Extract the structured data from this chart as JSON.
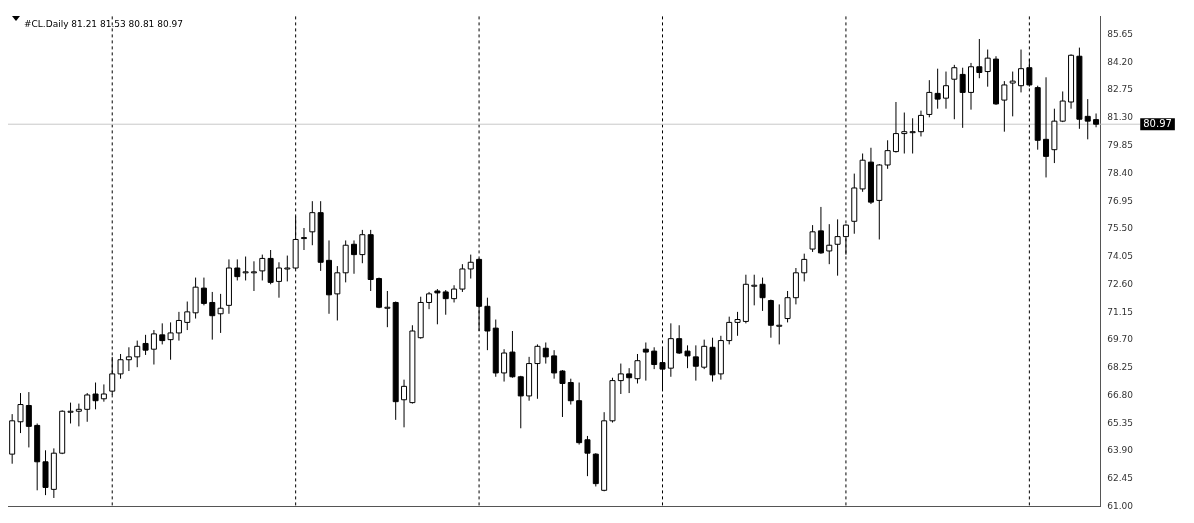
{
  "chart_data": {
    "type": "candlestick",
    "title": "#CL.Daily 81.21 81.53 80.81 80.97",
    "categories": [
      null,
      null,
      null,
      null,
      null,
      null,
      null,
      null,
      null,
      null,
      null,
      null,
      null,
      null,
      null,
      null,
      null,
      null,
      null,
      null,
      null,
      null,
      null,
      null,
      null,
      null,
      null,
      null,
      null,
      null,
      null,
      null,
      null,
      null,
      null,
      null,
      null,
      null,
      null,
      null,
      null,
      null,
      null,
      null,
      null,
      null,
      null,
      null,
      null,
      null,
      null,
      null,
      null,
      null,
      null,
      null,
      null,
      null,
      null,
      null,
      null,
      null,
      null,
      null,
      null,
      null,
      null,
      null,
      null,
      null,
      null,
      null,
      null,
      null,
      null,
      null,
      null,
      null,
      null,
      null,
      null,
      null,
      null,
      null,
      null,
      null,
      null,
      null,
      null,
      null,
      null,
      null,
      null,
      null,
      null,
      null,
      null,
      null,
      null,
      null,
      null,
      null,
      null,
      null,
      null,
      null,
      null,
      null,
      null,
      null,
      null,
      null,
      null,
      null,
      null,
      null,
      null,
      null,
      null,
      null,
      null,
      null,
      null,
      null,
      null,
      null,
      null,
      null,
      null,
      null,
      null
    ],
    "ohlc": [
      [
        63.74,
        65.83,
        63.24,
        65.48
      ],
      [
        65.43,
        66.93,
        64.84,
        66.33
      ],
      [
        66.28,
        66.98,
        64.09,
        65.19
      ],
      [
        65.24,
        65.34,
        61.85,
        63.34
      ],
      [
        63.34,
        63.94,
        61.6,
        62.0
      ],
      [
        61.9,
        64.04,
        61.45,
        63.79
      ],
      [
        63.79,
        66.03,
        63.74,
        65.98
      ],
      [
        65.98,
        66.43,
        65.34,
        65.98
      ],
      [
        65.98,
        66.38,
        65.19,
        66.08
      ],
      [
        66.08,
        66.93,
        65.43,
        66.83
      ],
      [
        66.88,
        67.48,
        66.08,
        66.53
      ],
      [
        66.63,
        67.38,
        66.48,
        66.88
      ],
      [
        67.03,
        68.82,
        66.83,
        67.93
      ],
      [
        67.93,
        68.97,
        67.68,
        68.67
      ],
      [
        68.67,
        69.32,
        68.08,
        68.82
      ],
      [
        68.82,
        69.67,
        68.28,
        69.37
      ],
      [
        69.52,
        69.97,
        68.92,
        69.17
      ],
      [
        69.22,
        70.22,
        68.42,
        70.02
      ],
      [
        69.97,
        70.57,
        69.47,
        69.67
      ],
      [
        69.72,
        70.62,
        68.67,
        70.07
      ],
      [
        70.07,
        71.17,
        69.67,
        70.72
      ],
      [
        70.62,
        71.71,
        70.22,
        71.17
      ],
      [
        71.12,
        72.96,
        70.82,
        72.46
      ],
      [
        72.41,
        72.96,
        71.51,
        71.61
      ],
      [
        71.66,
        72.21,
        69.72,
        70.97
      ],
      [
        71.07,
        72.11,
        70.07,
        71.36
      ],
      [
        71.51,
        73.91,
        71.07,
        73.46
      ],
      [
        73.46,
        73.91,
        72.81,
        73.01
      ],
      [
        73.26,
        74.06,
        72.81,
        73.26
      ],
      [
        73.26,
        73.81,
        72.26,
        73.26
      ],
      [
        73.31,
        74.16,
        72.81,
        73.96
      ],
      [
        73.96,
        74.4,
        72.61,
        72.71
      ],
      [
        72.76,
        73.76,
        71.91,
        73.46
      ],
      [
        73.46,
        74.11,
        72.76,
        73.46
      ],
      [
        73.46,
        76.15,
        73.41,
        74.95
      ],
      [
        75.05,
        75.55,
        74.4,
        75.05
      ],
      [
        75.35,
        76.95,
        74.65,
        76.35
      ],
      [
        76.35,
        76.95,
        73.31,
        73.76
      ],
      [
        73.86,
        74.9,
        71.07,
        72.06
      ],
      [
        72.11,
        73.56,
        70.72,
        73.21
      ],
      [
        73.21,
        74.9,
        72.71,
        74.65
      ],
      [
        74.7,
        74.9,
        73.16,
        74.16
      ],
      [
        74.16,
        75.45,
        73.71,
        75.2
      ],
      [
        75.2,
        75.45,
        72.26,
        72.86
      ],
      [
        72.91,
        72.96,
        71.36,
        71.41
      ],
      [
        71.41,
        72.26,
        70.37,
        71.41
      ],
      [
        71.66,
        71.71,
        65.53,
        66.48
      ],
      [
        66.58,
        67.63,
        65.14,
        67.28
      ],
      [
        66.43,
        70.47,
        66.38,
        70.17
      ],
      [
        69.82,
        71.96,
        69.77,
        71.66
      ],
      [
        71.66,
        72.21,
        71.31,
        72.11
      ],
      [
        72.26,
        72.36,
        70.52,
        72.16
      ],
      [
        72.21,
        72.31,
        71.02,
        71.86
      ],
      [
        71.86,
        72.56,
        71.66,
        72.36
      ],
      [
        72.36,
        73.66,
        72.21,
        73.41
      ],
      [
        73.41,
        74.16,
        72.91,
        73.76
      ],
      [
        73.91,
        73.96,
        70.17,
        71.46
      ],
      [
        71.46,
        71.91,
        69.17,
        70.17
      ],
      [
        70.32,
        70.77,
        67.78,
        67.98
      ],
      [
        67.98,
        69.22,
        67.53,
        69.02
      ],
      [
        69.07,
        70.17,
        67.73,
        67.78
      ],
      [
        67.78,
        67.83,
        65.09,
        66.78
      ],
      [
        66.78,
        68.82,
        66.53,
        68.47
      ],
      [
        68.47,
        69.47,
        66.63,
        69.37
      ],
      [
        69.27,
        69.57,
        68.47,
        68.82
      ],
      [
        68.87,
        69.17,
        67.68,
        67.98
      ],
      [
        68.08,
        68.13,
        65.68,
        67.43
      ],
      [
        67.48,
        67.68,
        66.33,
        66.53
      ],
      [
        66.53,
        67.48,
        64.24,
        64.34
      ],
      [
        64.49,
        64.69,
        62.59,
        63.79
      ],
      [
        63.74,
        63.79,
        62.05,
        62.2
      ],
      [
        61.85,
        65.93,
        61.8,
        65.48
      ],
      [
        65.48,
        67.73,
        65.39,
        67.58
      ],
      [
        67.58,
        68.47,
        66.88,
        67.93
      ],
      [
        67.93,
        68.23,
        66.93,
        67.73
      ],
      [
        67.68,
        68.97,
        67.43,
        68.62
      ],
      [
        69.22,
        69.57,
        67.58,
        69.07
      ],
      [
        69.12,
        69.32,
        68.18,
        68.42
      ],
      [
        68.52,
        69.22,
        67.03,
        68.18
      ],
      [
        68.23,
        70.57,
        67.78,
        69.77
      ],
      [
        69.77,
        70.47,
        68.97,
        69.02
      ],
      [
        69.12,
        69.42,
        68.23,
        68.87
      ],
      [
        68.82,
        69.42,
        67.58,
        68.33
      ],
      [
        68.28,
        69.72,
        68.18,
        69.37
      ],
      [
        69.32,
        69.82,
        67.53,
        67.88
      ],
      [
        67.93,
        69.92,
        67.63,
        69.67
      ],
      [
        69.67,
        70.92,
        69.47,
        70.62
      ],
      [
        70.62,
        71.17,
        69.92,
        70.77
      ],
      [
        70.67,
        73.11,
        70.57,
        72.61
      ],
      [
        72.56,
        73.11,
        71.51,
        72.56
      ],
      [
        72.61,
        72.96,
        71.22,
        71.91
      ],
      [
        71.76,
        71.81,
        69.82,
        70.47
      ],
      [
        70.47,
        71.56,
        69.47,
        70.47
      ],
      [
        70.82,
        72.26,
        70.62,
        71.91
      ],
      [
        71.91,
        73.46,
        71.56,
        73.21
      ],
      [
        73.21,
        74.21,
        72.76,
        73.91
      ],
      [
        74.45,
        75.7,
        74.3,
        75.35
      ],
      [
        75.4,
        76.65,
        74.2,
        74.25
      ],
      [
        74.35,
        75.75,
        73.66,
        74.65
      ],
      [
        74.7,
        76.0,
        73.06,
        75.1
      ],
      [
        75.1,
        75.75,
        74.16,
        75.7
      ],
      [
        75.9,
        78.39,
        75.25,
        77.64
      ],
      [
        77.59,
        79.44,
        77.44,
        79.09
      ],
      [
        78.99,
        79.74,
        76.8,
        76.9
      ],
      [
        76.99,
        78.89,
        74.95,
        78.84
      ],
      [
        78.84,
        80.13,
        78.64,
        79.59
      ],
      [
        79.54,
        82.13,
        79.49,
        80.48
      ],
      [
        80.48,
        81.58,
        79.44,
        80.58
      ],
      [
        80.58,
        81.28,
        79.44,
        80.58
      ],
      [
        80.58,
        81.68,
        80.33,
        81.43
      ],
      [
        81.48,
        83.27,
        81.33,
        82.63
      ],
      [
        82.58,
        83.87,
        81.78,
        82.28
      ],
      [
        82.33,
        83.72,
        81.78,
        82.98
      ],
      [
        83.32,
        84.07,
        81.23,
        83.92
      ],
      [
        83.57,
        83.92,
        80.78,
        82.63
      ],
      [
        82.63,
        84.17,
        81.73,
        83.97
      ],
      [
        83.97,
        85.42,
        83.37,
        83.67
      ],
      [
        83.72,
        84.87,
        82.93,
        84.42
      ],
      [
        84.37,
        84.52,
        81.98,
        82.03
      ],
      [
        82.23,
        83.22,
        80.58,
        83.02
      ],
      [
        83.12,
        83.72,
        81.38,
        83.22
      ],
      [
        82.98,
        84.87,
        82.63,
        83.87
      ],
      [
        83.92,
        84.37,
        82.93,
        83.02
      ],
      [
        82.88,
        82.98,
        79.64,
        80.13
      ],
      [
        80.18,
        83.42,
        78.19,
        79.29
      ],
      [
        79.64,
        81.78,
        78.94,
        81.13
      ],
      [
        81.13,
        82.68,
        81.08,
        82.18
      ],
      [
        82.13,
        84.62,
        81.78,
        84.57
      ],
      [
        84.52,
        84.97,
        80.73,
        81.23
      ],
      [
        81.38,
        82.28,
        80.18,
        81.13
      ],
      [
        81.21,
        81.53,
        80.81,
        80.97
      ]
    ],
    "ylim": [
      61,
      86.6
    ],
    "yticks": [
      {
        "value": 61,
        "label": "61.00"
      },
      62.45,
      {
        "value": 63.9,
        "label": "63.90"
      },
      65.35,
      {
        "value": 66.8,
        "label": "66.80"
      },
      68.25,
      {
        "value": 69.7,
        "label": "69.70"
      },
      71.15,
      {
        "value": 72.6,
        "label": "72.60"
      },
      74.05,
      {
        "value": 75.5,
        "label": "75.50"
      },
      76.95,
      {
        "value": 78.4,
        "label": "78.40"
      },
      79.85,
      {
        "value": 81.3,
        "label": "81.30"
      },
      82.75,
      {
        "value": 84.2,
        "label": "84.20"
      },
      85.65
    ],
    "ref_lines": [
      {
        "axis": "y",
        "value": 80.97,
        "label": "80.97",
        "color": "#c8c8c8"
      }
    ],
    "tick_labels": "y"
  }
}
